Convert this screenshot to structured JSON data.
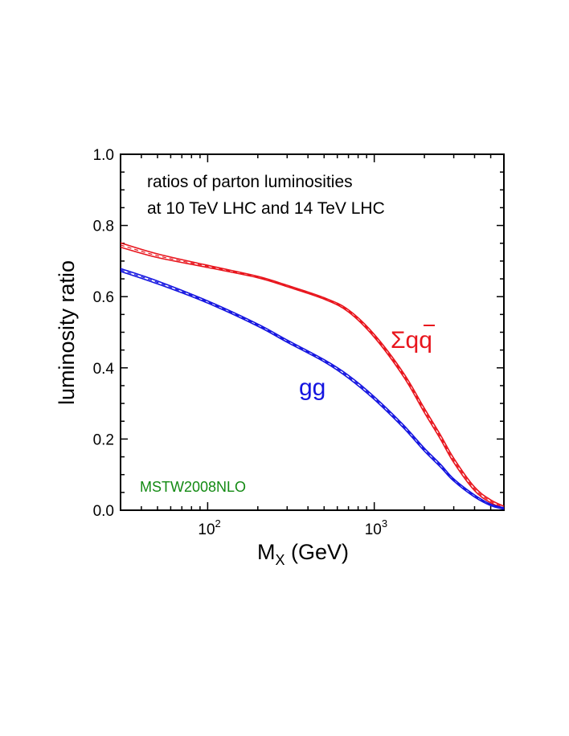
{
  "chart_data": {
    "type": "line",
    "xlabel_main": "M",
    "xlabel_sub": "X",
    "xlabel_unit": " (GeV)",
    "ylabel": "luminosity ratio",
    "xscale": "log",
    "xlim": [
      30,
      6000
    ],
    "ylim": [
      0.0,
      1.0
    ],
    "yticks": [
      "0.0",
      "0.2",
      "0.4",
      "0.6",
      "0.8",
      "1.0"
    ],
    "xticks": [
      {
        "value": 100,
        "base": "10",
        "exp": "2"
      },
      {
        "value": 1000,
        "base": "10",
        "exp": "3"
      }
    ],
    "annotation_lines": [
      "ratios of parton luminosities",
      "at 10 TeV LHC and 14 TeV LHC"
    ],
    "pdf_label": "MSTW2008NLO",
    "pdf_label_color": "#138a13",
    "series": [
      {
        "label": "Σqq",
        "color": "#e8141c",
        "x": [
          30,
          50,
          100,
          200,
          300,
          500,
          700,
          1000,
          1500,
          2000,
          2500,
          3000,
          4000,
          5000,
          6000
        ],
        "y": [
          0.745,
          0.715,
          0.685,
          0.655,
          0.63,
          0.595,
          0.56,
          0.49,
          0.38,
          0.28,
          0.205,
          0.14,
          0.06,
          0.025,
          0.008
        ],
        "band": [
          0.006,
          0.005,
          0.003,
          0.002,
          0.002,
          0.002,
          0.003,
          0.004,
          0.005,
          0.006,
          0.006,
          0.006,
          0.005,
          0.004,
          0.003
        ]
      },
      {
        "label": "gg",
        "color": "#1414e0",
        "x": [
          30,
          50,
          100,
          200,
          300,
          500,
          700,
          1000,
          1500,
          2000,
          2500,
          3000,
          4000,
          5000,
          6000
        ],
        "y": [
          0.675,
          0.64,
          0.585,
          0.52,
          0.475,
          0.42,
          0.375,
          0.315,
          0.235,
          0.17,
          0.125,
          0.085,
          0.04,
          0.015,
          0.005
        ],
        "band": [
          0.004,
          0.004,
          0.003,
          0.003,
          0.003,
          0.003,
          0.004,
          0.004,
          0.004,
          0.004,
          0.004,
          0.003,
          0.003,
          0.002,
          0.002
        ]
      }
    ]
  }
}
